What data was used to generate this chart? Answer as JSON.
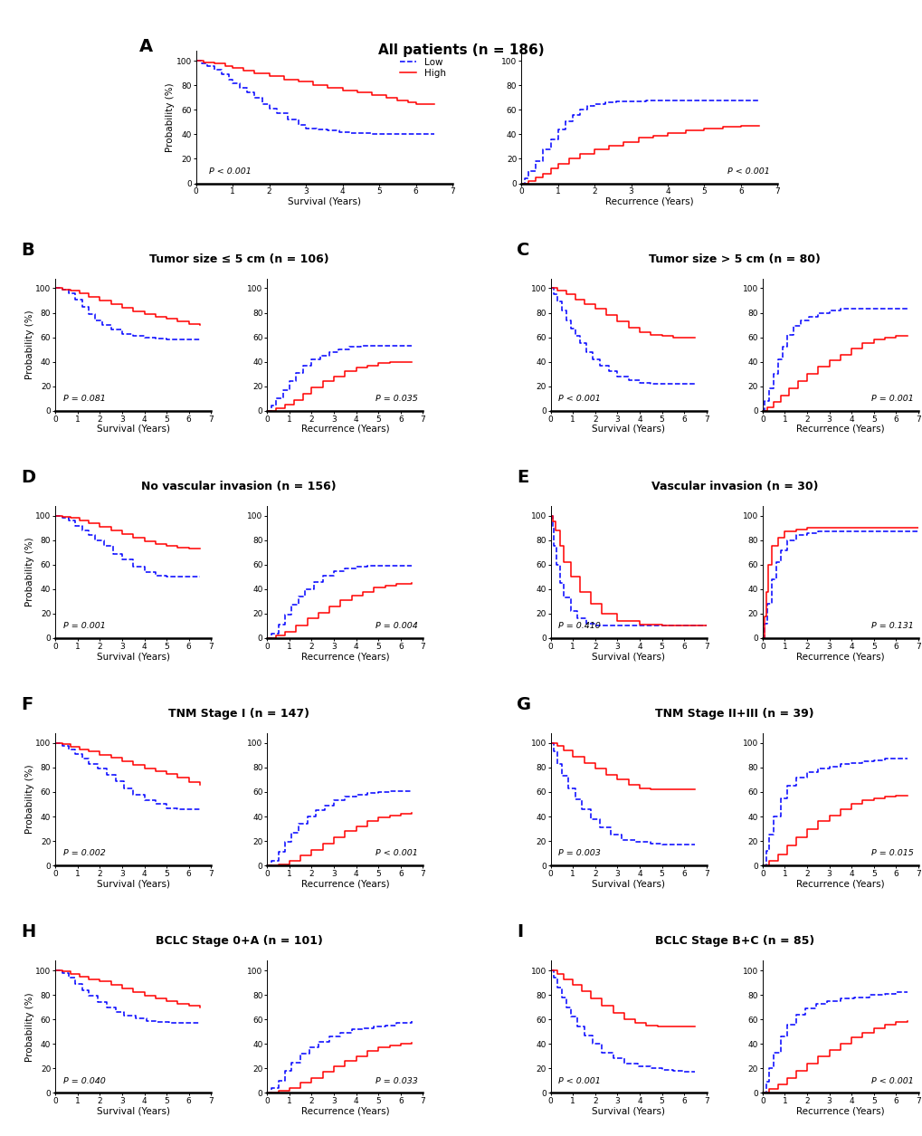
{
  "title_A": "All patients (n = 186)",
  "title_B": "Tumor size ≤ 5 cm (n = 106)",
  "title_C": "Tumor size > 5 cm (n = 80)",
  "title_D": "No vascular invasion (n = 156)",
  "title_E": "Vascular invasion (n = 30)",
  "title_F": "TNM Stage I (n = 147)",
  "title_G": "TNM Stage II+III (n = 39)",
  "title_H": "BCLC Stage 0+A (n = 101)",
  "title_I": "BCLC Stage B+C (n = 85)",
  "color_low": "#0000FF",
  "color_high": "#FF0000",
  "pvals": {
    "A_os": "P < 0.001",
    "A_rec": "P < 0.001",
    "B_os": "P = 0.081",
    "B_rec": "P = 0.035",
    "C_os": "P < 0.001",
    "C_rec": "P = 0.001",
    "D_os": "P = 0.001",
    "D_rec": "P = 0.004",
    "E_os": "P = 0.410",
    "E_rec": "P = 0.131",
    "F_os": "P = 0.002",
    "F_rec": "P < 0.001",
    "G_os": "P = 0.003",
    "G_rec": "P = 0.015",
    "H_os": "P = 0.040",
    "H_rec": "P = 0.033",
    "I_os": "P < 0.001",
    "I_rec": "P < 0.001"
  },
  "curves": {
    "A_os": {
      "low_t": [
        0,
        0.15,
        0.3,
        0.5,
        0.7,
        0.9,
        1.0,
        1.2,
        1.4,
        1.6,
        1.8,
        2.0,
        2.2,
        2.5,
        2.8,
        3.0,
        3.3,
        3.6,
        3.9,
        4.2,
        4.5,
        4.8,
        5.1,
        5.4,
        5.7,
        6.0,
        6.5
      ],
      "low_s": [
        100,
        98,
        96,
        93,
        89,
        85,
        82,
        78,
        74,
        70,
        65,
        61,
        57,
        52,
        48,
        45,
        44,
        43,
        42,
        41,
        41,
        40,
        40,
        40,
        40,
        40,
        40
      ],
      "high_t": [
        0,
        0.2,
        0.5,
        0.8,
        1.0,
        1.3,
        1.6,
        2.0,
        2.4,
        2.8,
        3.2,
        3.6,
        4.0,
        4.4,
        4.8,
        5.2,
        5.5,
        5.8,
        6.0,
        6.5
      ],
      "high_s": [
        100,
        99,
        98,
        96,
        94,
        92,
        90,
        88,
        85,
        83,
        80,
        78,
        76,
        74,
        72,
        70,
        68,
        66,
        65,
        65
      ]
    },
    "A_rec": {
      "low_t": [
        0,
        0.1,
        0.2,
        0.4,
        0.6,
        0.8,
        1.0,
        1.2,
        1.4,
        1.6,
        1.8,
        2.0,
        2.3,
        2.6,
        3.0,
        3.4,
        3.8,
        4.2,
        4.6,
        5.0,
        5.5,
        6.0,
        6.5
      ],
      "low_s": [
        0,
        4,
        10,
        18,
        28,
        36,
        44,
        51,
        56,
        60,
        63,
        65,
        66,
        67,
        67,
        68,
        68,
        68,
        68,
        68,
        68,
        68,
        68
      ],
      "high_t": [
        0,
        0.2,
        0.4,
        0.6,
        0.8,
        1.0,
        1.3,
        1.6,
        2.0,
        2.4,
        2.8,
        3.2,
        3.6,
        4.0,
        4.5,
        5.0,
        5.5,
        6.0,
        6.5
      ],
      "high_s": [
        0,
        2,
        5,
        8,
        12,
        16,
        20,
        24,
        28,
        31,
        34,
        37,
        39,
        41,
        43,
        45,
        46,
        47,
        47
      ]
    },
    "B_os": {
      "low_t": [
        0,
        0.3,
        0.6,
        0.9,
        1.2,
        1.5,
        1.8,
        2.1,
        2.5,
        3.0,
        3.5,
        4.0,
        4.5,
        5.0,
        5.5,
        6.0,
        6.5
      ],
      "low_s": [
        100,
        99,
        96,
        91,
        85,
        79,
        74,
        70,
        66,
        63,
        61,
        60,
        59,
        58,
        58,
        58,
        58
      ],
      "high_t": [
        0,
        0.3,
        0.7,
        1.1,
        1.5,
        2.0,
        2.5,
        3.0,
        3.5,
        4.0,
        4.5,
        5.0,
        5.5,
        6.0,
        6.5
      ],
      "high_s": [
        100,
        99,
        98,
        96,
        93,
        90,
        87,
        84,
        81,
        79,
        77,
        75,
        73,
        71,
        70
      ]
    },
    "B_rec": {
      "low_t": [
        0,
        0.2,
        0.4,
        0.7,
        1.0,
        1.3,
        1.6,
        2.0,
        2.4,
        2.8,
        3.2,
        3.7,
        4.2,
        4.7,
        5.2,
        5.7,
        6.0,
        6.5
      ],
      "low_s": [
        0,
        4,
        10,
        17,
        24,
        31,
        37,
        42,
        45,
        48,
        50,
        52,
        53,
        53,
        53,
        53,
        53,
        53
      ],
      "high_t": [
        0,
        0.4,
        0.8,
        1.2,
        1.6,
        2.0,
        2.5,
        3.0,
        3.5,
        4.0,
        4.5,
        5.0,
        5.5,
        6.0,
        6.5
      ],
      "high_s": [
        0,
        2,
        5,
        9,
        14,
        19,
        24,
        28,
        32,
        35,
        37,
        39,
        40,
        40,
        40
      ]
    },
    "C_os": {
      "low_t": [
        0,
        0.15,
        0.3,
        0.5,
        0.7,
        0.9,
        1.1,
        1.3,
        1.6,
        1.9,
        2.2,
        2.6,
        3.0,
        3.5,
        4.0,
        4.5,
        5.0,
        5.5,
        6.0,
        6.5
      ],
      "low_s": [
        100,
        95,
        89,
        82,
        74,
        67,
        61,
        55,
        48,
        42,
        37,
        32,
        28,
        25,
        23,
        22,
        22,
        22,
        22,
        22
      ],
      "high_t": [
        0,
        0.3,
        0.7,
        1.1,
        1.5,
        2.0,
        2.5,
        3.0,
        3.5,
        4.0,
        4.5,
        5.0,
        5.5,
        6.0,
        6.5
      ],
      "high_s": [
        100,
        98,
        95,
        91,
        87,
        83,
        78,
        73,
        68,
        64,
        62,
        61,
        60,
        60,
        60
      ]
    },
    "C_rec": {
      "low_t": [
        0,
        0.1,
        0.3,
        0.5,
        0.7,
        0.9,
        1.1,
        1.4,
        1.7,
        2.1,
        2.5,
        3.0,
        3.5,
        4.0,
        4.5,
        5.0,
        5.5,
        6.0,
        6.5
      ],
      "low_s": [
        0,
        8,
        18,
        30,
        42,
        52,
        62,
        69,
        74,
        77,
        80,
        82,
        83,
        83,
        83,
        83,
        83,
        83,
        83
      ],
      "high_t": [
        0,
        0.2,
        0.5,
        0.8,
        1.2,
        1.6,
        2.0,
        2.5,
        3.0,
        3.5,
        4.0,
        4.5,
        5.0,
        5.5,
        6.0,
        6.5
      ],
      "high_s": [
        0,
        3,
        7,
        12,
        18,
        24,
        30,
        36,
        41,
        46,
        51,
        55,
        58,
        60,
        61,
        61
      ]
    },
    "D_os": {
      "low_t": [
        0,
        0.3,
        0.6,
        0.9,
        1.2,
        1.5,
        1.8,
        2.2,
        2.6,
        3.0,
        3.5,
        4.0,
        4.5,
        5.0,
        5.5,
        6.0,
        6.5
      ],
      "low_s": [
        100,
        98,
        96,
        92,
        88,
        84,
        80,
        75,
        69,
        64,
        58,
        54,
        51,
        50,
        50,
        50,
        50
      ],
      "high_t": [
        0,
        0.3,
        0.7,
        1.1,
        1.5,
        2.0,
        2.5,
        3.0,
        3.5,
        4.0,
        4.5,
        5.0,
        5.5,
        6.0,
        6.5
      ],
      "high_s": [
        100,
        99,
        98,
        96,
        94,
        91,
        88,
        85,
        82,
        79,
        77,
        75,
        74,
        73,
        73
      ]
    },
    "D_rec": {
      "low_t": [
        0,
        0.2,
        0.5,
        0.8,
        1.1,
        1.4,
        1.7,
        2.1,
        2.5,
        3.0,
        3.5,
        4.0,
        4.5,
        5.0,
        5.5,
        6.0,
        6.5
      ],
      "low_s": [
        0,
        4,
        11,
        19,
        27,
        34,
        40,
        46,
        51,
        55,
        57,
        58,
        59,
        59,
        59,
        59,
        59
      ],
      "high_t": [
        0,
        0.4,
        0.8,
        1.3,
        1.8,
        2.3,
        2.8,
        3.3,
        3.8,
        4.3,
        4.8,
        5.3,
        5.8,
        6.5
      ],
      "high_s": [
        0,
        2,
        5,
        10,
        16,
        21,
        26,
        31,
        35,
        38,
        41,
        43,
        44,
        45
      ]
    },
    "E_os": {
      "low_t": [
        0,
        0.08,
        0.15,
        0.25,
        0.4,
        0.6,
        0.9,
        1.2,
        1.6,
        2.0,
        2.5,
        3.0,
        3.5,
        4.0,
        5.0,
        6.0,
        7.0
      ],
      "low_s": [
        100,
        90,
        75,
        60,
        45,
        33,
        22,
        16,
        12,
        10,
        10,
        10,
        10,
        10,
        10,
        10,
        10
      ],
      "high_t": [
        0,
        0.1,
        0.2,
        0.4,
        0.6,
        0.9,
        1.3,
        1.8,
        2.3,
        3.0,
        4.0,
        5.0,
        6.0,
        7.0
      ],
      "high_s": [
        100,
        95,
        88,
        75,
        62,
        50,
        38,
        28,
        20,
        14,
        11,
        10,
        10,
        10
      ]
    },
    "E_rec": {
      "low_t": [
        0,
        0.1,
        0.2,
        0.4,
        0.6,
        0.8,
        1.1,
        1.5,
        2.0,
        2.5,
        3.0,
        4.0,
        5.0,
        6.0,
        7.0
      ],
      "low_s": [
        0,
        12,
        28,
        48,
        62,
        72,
        80,
        84,
        86,
        87,
        87,
        87,
        87,
        87,
        87
      ],
      "high_t": [
        0,
        0.08,
        0.15,
        0.25,
        0.4,
        0.7,
        1.0,
        1.5,
        2.0,
        3.0,
        4.0,
        5.0,
        6.0,
        7.0
      ],
      "high_s": [
        0,
        18,
        38,
        60,
        75,
        82,
        87,
        89,
        90,
        90,
        90,
        90,
        90,
        90
      ]
    },
    "F_os": {
      "low_t": [
        0,
        0.3,
        0.6,
        0.9,
        1.2,
        1.5,
        1.9,
        2.3,
        2.7,
        3.1,
        3.5,
        4.0,
        4.5,
        5.0,
        5.5,
        6.0,
        6.5
      ],
      "low_s": [
        100,
        98,
        95,
        91,
        87,
        83,
        79,
        74,
        69,
        63,
        58,
        53,
        50,
        47,
        46,
        46,
        46
      ],
      "high_t": [
        0,
        0.3,
        0.7,
        1.1,
        1.5,
        2.0,
        2.5,
        3.0,
        3.5,
        4.0,
        4.5,
        5.0,
        5.5,
        6.0,
        6.5
      ],
      "high_s": [
        100,
        99,
        97,
        95,
        93,
        90,
        88,
        85,
        82,
        79,
        77,
        75,
        72,
        68,
        66
      ]
    },
    "F_rec": {
      "low_t": [
        0,
        0.2,
        0.5,
        0.8,
        1.1,
        1.4,
        1.8,
        2.2,
        2.6,
        3.0,
        3.5,
        4.0,
        4.5,
        5.0,
        5.5,
        6.0,
        6.5
      ],
      "low_s": [
        0,
        4,
        11,
        19,
        27,
        34,
        40,
        45,
        49,
        53,
        56,
        58,
        59,
        60,
        61,
        61,
        61
      ],
      "high_t": [
        0,
        0.5,
        1.0,
        1.5,
        2.0,
        2.5,
        3.0,
        3.5,
        4.0,
        4.5,
        5.0,
        5.5,
        6.0,
        6.5
      ],
      "high_s": [
        0,
        1,
        4,
        8,
        13,
        18,
        23,
        28,
        32,
        36,
        39,
        41,
        42,
        43
      ]
    },
    "G_os": {
      "low_t": [
        0,
        0.15,
        0.3,
        0.5,
        0.8,
        1.1,
        1.4,
        1.8,
        2.2,
        2.7,
        3.2,
        3.8,
        4.5,
        5.0,
        5.5,
        6.0,
        6.5
      ],
      "low_s": [
        100,
        93,
        83,
        73,
        63,
        54,
        46,
        38,
        31,
        25,
        21,
        19,
        18,
        17,
        17,
        17,
        17
      ],
      "high_t": [
        0,
        0.3,
        0.6,
        1.0,
        1.5,
        2.0,
        2.5,
        3.0,
        3.5,
        4.0,
        4.5,
        5.0,
        5.5,
        6.0,
        6.5
      ],
      "high_s": [
        100,
        98,
        94,
        89,
        84,
        79,
        74,
        70,
        66,
        63,
        62,
        62,
        62,
        62,
        62
      ]
    },
    "G_rec": {
      "low_t": [
        0,
        0.15,
        0.3,
        0.5,
        0.8,
        1.1,
        1.5,
        2.0,
        2.5,
        3.0,
        3.5,
        4.0,
        4.5,
        5.0,
        5.5,
        6.0,
        6.5
      ],
      "low_s": [
        0,
        12,
        25,
        40,
        55,
        65,
        72,
        76,
        79,
        81,
        83,
        84,
        85,
        86,
        87,
        87,
        87
      ],
      "high_t": [
        0,
        0.3,
        0.7,
        1.1,
        1.5,
        2.0,
        2.5,
        3.0,
        3.5,
        4.0,
        4.5,
        5.0,
        5.5,
        6.0,
        6.5
      ],
      "high_s": [
        0,
        4,
        9,
        16,
        23,
        30,
        36,
        41,
        46,
        50,
        53,
        55,
        56,
        57,
        57
      ]
    },
    "H_os": {
      "low_t": [
        0,
        0.3,
        0.6,
        0.9,
        1.2,
        1.5,
        1.9,
        2.3,
        2.7,
        3.1,
        3.6,
        4.1,
        4.6,
        5.1,
        5.6,
        6.0,
        6.5
      ],
      "low_s": [
        100,
        98,
        94,
        89,
        84,
        79,
        74,
        70,
        66,
        63,
        61,
        59,
        58,
        57,
        57,
        57,
        57
      ],
      "high_t": [
        0,
        0.3,
        0.7,
        1.1,
        1.5,
        2.0,
        2.5,
        3.0,
        3.5,
        4.0,
        4.5,
        5.0,
        5.5,
        6.0,
        6.5
      ],
      "high_s": [
        100,
        99,
        97,
        95,
        93,
        91,
        88,
        85,
        82,
        79,
        77,
        75,
        73,
        71,
        70
      ]
    },
    "H_rec": {
      "low_t": [
        0,
        0.2,
        0.5,
        0.8,
        1.1,
        1.5,
        1.9,
        2.3,
        2.8,
        3.3,
        3.8,
        4.3,
        4.8,
        5.3,
        5.8,
        6.5
      ],
      "low_s": [
        0,
        4,
        10,
        18,
        25,
        32,
        37,
        42,
        46,
        49,
        52,
        53,
        54,
        55,
        57,
        59
      ],
      "high_t": [
        0,
        0.5,
        1.0,
        1.5,
        2.0,
        2.5,
        3.0,
        3.5,
        4.0,
        4.5,
        5.0,
        5.5,
        6.0,
        6.5
      ],
      "high_s": [
        0,
        2,
        4,
        8,
        12,
        17,
        22,
        26,
        30,
        34,
        37,
        39,
        40,
        41
      ]
    },
    "I_os": {
      "low_t": [
        0,
        0.15,
        0.3,
        0.5,
        0.7,
        0.9,
        1.2,
        1.5,
        1.9,
        2.3,
        2.8,
        3.3,
        3.9,
        4.5,
        5.0,
        5.5,
        6.0,
        6.5
      ],
      "low_s": [
        100,
        94,
        86,
        78,
        70,
        62,
        54,
        47,
        40,
        33,
        28,
        24,
        22,
        20,
        19,
        18,
        17,
        17
      ],
      "high_t": [
        0,
        0.3,
        0.6,
        1.0,
        1.4,
        1.8,
        2.3,
        2.8,
        3.3,
        3.8,
        4.3,
        4.8,
        5.3,
        5.7,
        6.0,
        6.5
      ],
      "high_s": [
        100,
        97,
        93,
        88,
        83,
        77,
        71,
        65,
        60,
        57,
        55,
        54,
        54,
        54,
        54,
        54
      ]
    },
    "I_rec": {
      "low_t": [
        0,
        0.15,
        0.3,
        0.5,
        0.8,
        1.1,
        1.5,
        1.9,
        2.4,
        2.9,
        3.5,
        4.1,
        4.8,
        5.5,
        6.0,
        6.5
      ],
      "low_s": [
        0,
        9,
        20,
        33,
        46,
        56,
        64,
        69,
        73,
        75,
        77,
        78,
        80,
        81,
        82,
        82
      ],
      "high_t": [
        0,
        0.3,
        0.7,
        1.1,
        1.5,
        2.0,
        2.5,
        3.0,
        3.5,
        4.0,
        4.5,
        5.0,
        5.5,
        6.0,
        6.5
      ],
      "high_s": [
        0,
        3,
        7,
        12,
        18,
        24,
        30,
        35,
        40,
        45,
        49,
        53,
        56,
        58,
        59
      ]
    }
  }
}
